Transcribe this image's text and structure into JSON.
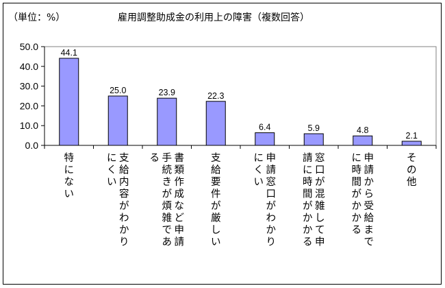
{
  "unit_label": "（単位：%）",
  "chart_data": {
    "type": "bar",
    "title": "雇用調整助成金の利用上の障害（複数回答）",
    "xlabel": "",
    "ylabel": "",
    "ylim": [
      0,
      50
    ],
    "yticks": [
      "0.0",
      "10.0",
      "20.0",
      "30.0",
      "40.0",
      "50.0"
    ],
    "categories": [
      [
        "特にない"
      ],
      [
        "支給内容がわかり",
        "にくい"
      ],
      [
        "書類作成など申請",
        "手続きが煩雑であ",
        "る"
      ],
      [
        "支給要件が厳しい"
      ],
      [
        "申請窓口がわかり",
        "にくい"
      ],
      [
        "窓口が混雑して申",
        "請に時間がかかる"
      ],
      [
        "申請から受給まで",
        "に時間がかかる"
      ],
      [
        "その他"
      ]
    ],
    "values": [
      44.1,
      25.0,
      23.9,
      22.3,
      6.4,
      5.9,
      4.8,
      2.1
    ],
    "value_labels": [
      "44.1",
      "25.0",
      "23.9",
      "22.3",
      "6.4",
      "5.9",
      "4.8",
      "2.1"
    ],
    "grid": false,
    "legend": "none",
    "bar_color": "#9999ff"
  }
}
